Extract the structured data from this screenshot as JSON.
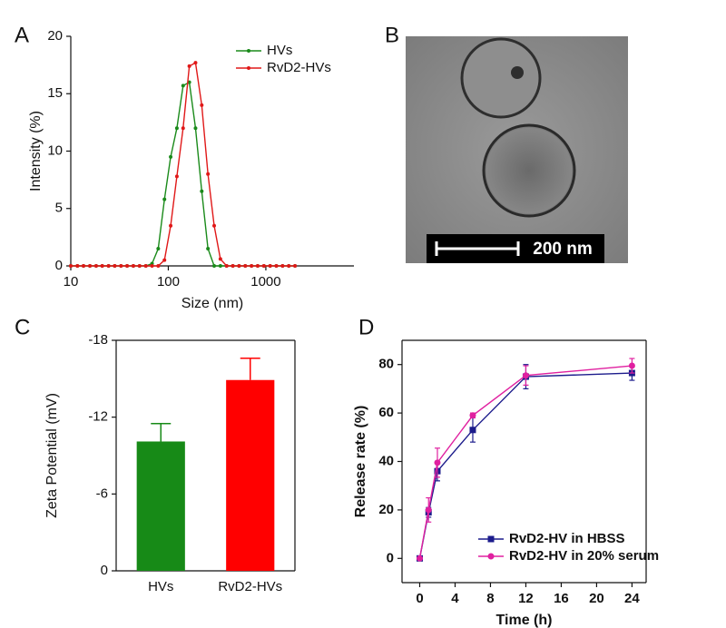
{
  "chart_data": [
    {
      "label": "A",
      "type": "line",
      "xscale": "log",
      "xlabel": "Size (nm)",
      "ylabel": "Intensity (%)",
      "x": [
        10,
        11.7,
        13.5,
        15.7,
        18.2,
        21,
        24.4,
        28.2,
        32.7,
        37.8,
        43.8,
        50.7,
        58.8,
        68.1,
        78.8,
        91.3,
        105.7,
        122.4,
        141.8,
        164.2,
        190.1,
        220.2,
        255,
        295.3,
        342,
        396.1,
        458.7,
        531.2,
        615.1,
        712.4,
        825,
        955.4,
        1106,
        1281,
        1484,
        1718,
        1990
      ],
      "series": [
        {
          "name": "HVs",
          "color": "#1a8a1a",
          "marker": "circle",
          "values": [
            0,
            0,
            0,
            0,
            0,
            0,
            0,
            0,
            0,
            0,
            0,
            0,
            0,
            0.2,
            1.5,
            5.8,
            9.5,
            12,
            15.7,
            16,
            12,
            6.5,
            1.5,
            0,
            0,
            0,
            0,
            0,
            0,
            0,
            0,
            0,
            0,
            0,
            0,
            0,
            0
          ]
        },
        {
          "name": "RvD2-HVs",
          "color": "#e01818",
          "marker": "circle",
          "values": [
            0,
            0,
            0,
            0,
            0,
            0,
            0,
            0,
            0,
            0,
            0,
            0,
            0,
            0,
            0,
            0.5,
            3.5,
            7.8,
            12,
            17.4,
            17.7,
            14,
            8,
            3.5,
            0.6,
            0,
            0,
            0,
            0,
            0,
            0,
            0,
            0,
            0,
            0,
            0,
            0
          ]
        }
      ],
      "xlim": [
        10,
        8000
      ],
      "xticks": [
        10,
        100,
        1000
      ],
      "ylim": [
        0,
        20
      ],
      "yticks": [
        0,
        5,
        10,
        15,
        20
      ],
      "legend": "upper right"
    },
    {
      "label": "C",
      "type": "bar",
      "ylabel": "Zeta Potential (mV)",
      "categories": [
        "HVs",
        "RvD2-HVs"
      ],
      "values": [
        -10.1,
        -14.9
      ],
      "errors": [
        1.4,
        1.7
      ],
      "colors": [
        "#178a17",
        "#ff0000"
      ],
      "ylim": [
        0,
        -18
      ],
      "yticks": [
        0,
        -6,
        -12,
        -18
      ]
    },
    {
      "label": "D",
      "type": "line",
      "xlabel": "Time (h)",
      "ylabel": "Release rate (%)",
      "x": [
        0,
        1,
        2,
        6,
        12,
        24
      ],
      "series": [
        {
          "name": "RvD2-HV in HBSS",
          "color": "#1c1c8c",
          "marker": "square",
          "values": [
            0,
            19,
            36,
            53,
            75,
            76.5
          ],
          "errors": [
            0,
            2,
            4,
            5,
            5,
            3
          ]
        },
        {
          "name": "RvD2-HV in 20% serum",
          "color": "#e020a0",
          "marker": "circle",
          "values": [
            0,
            20,
            39.5,
            59,
            75.5,
            79.5
          ],
          "errors": [
            0,
            5,
            6,
            1,
            4,
            3
          ]
        }
      ],
      "xlim": [
        -2,
        25.6
      ],
      "xticks": [
        0,
        4,
        8,
        12,
        16,
        20,
        24
      ],
      "ylim": [
        -10,
        90
      ],
      "yticks": [
        0,
        20,
        40,
        60,
        80
      ],
      "legend": "lower right"
    }
  ],
  "micrograph": {
    "label": "B",
    "scale_bar": "200 nm"
  }
}
